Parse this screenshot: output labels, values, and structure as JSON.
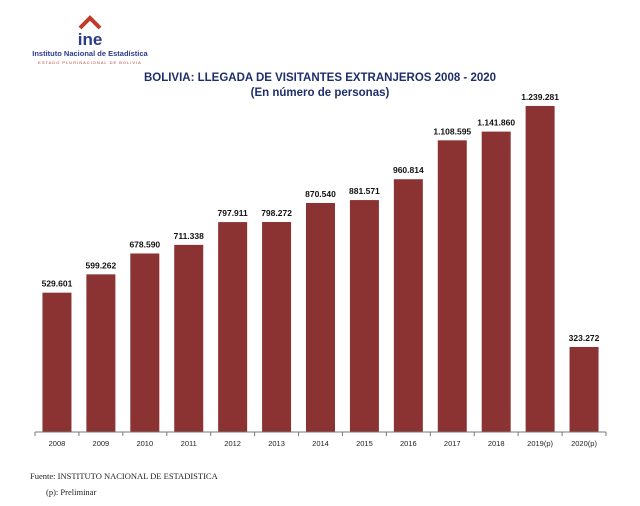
{
  "header": {
    "logo_word": "ine",
    "logo_name": "Instituto Nacional de Estadística",
    "logo_tagline": "ESTADO PLURINACIONAL DE BOLIVIA"
  },
  "colors": {
    "bar": "#8b3232",
    "title": "#1f2f6b",
    "logo_blue": "#2b3b8c",
    "logo_red": "#c0392b"
  },
  "chart_data": {
    "type": "bar",
    "title": "BOLIVIA: LLEGADA DE VISITANTES EXTRANJEROS 2008 - 2020",
    "subtitle": "(En número de personas)",
    "categories": [
      "2008",
      "2009",
      "2010",
      "2011",
      "2012",
      "2013",
      "2014",
      "2015",
      "2016",
      "2017",
      "2018",
      "2019(p)",
      "2020(p)"
    ],
    "values": [
      529601,
      599262,
      678590,
      711338,
      797911,
      798272,
      870540,
      881571,
      960814,
      1108595,
      1141860,
      1239281,
      323272
    ],
    "value_labels": [
      "529.601",
      "599.262",
      "678.590",
      "711.338",
      "797.911",
      "798.272",
      "870.540",
      "881.571",
      "960.814",
      "1.108.595",
      "1.141.860",
      "1.239.281",
      "323.272"
    ],
    "ylim": [
      0,
      1300000
    ],
    "grid": false,
    "legend": "none"
  },
  "footer": {
    "source": "Fuente: INSTITUTO NACIONAL DE ESTADISTICA",
    "note": "(p): Preliminar"
  }
}
